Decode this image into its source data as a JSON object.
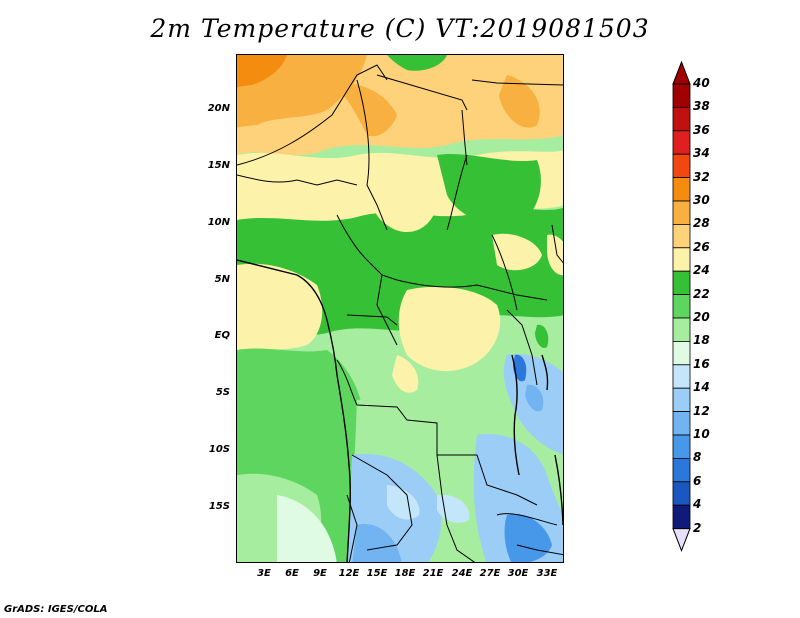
{
  "title": "2m Temperature (C) VT:2019081503",
  "footer": "GrADS: IGES/COLA",
  "latitude_labels": [
    "20N",
    "15N",
    "10N",
    "5N",
    "EQ",
    "5S",
    "10S",
    "15S"
  ],
  "longitude_labels": [
    "3E",
    "6E",
    "9E",
    "12E",
    "15E",
    "18E",
    "21E",
    "24E",
    "27E",
    "30E",
    "33E"
  ],
  "colorbar": {
    "levels": [
      "40",
      "38",
      "36",
      "34",
      "32",
      "30",
      "28",
      "26",
      "24",
      "22",
      "20",
      "18",
      "16",
      "14",
      "12",
      "10",
      "8",
      "6",
      "4",
      "2"
    ],
    "colors": [
      "#a00000",
      "#c01010",
      "#e02020",
      "#f04810",
      "#f48c10",
      "#f8b040",
      "#fdd27a",
      "#fdf2aa",
      "#36c036",
      "#5ed55e",
      "#a6eda0",
      "#e0fbe4",
      "#c4e6fb",
      "#9ccdf6",
      "#72b4f2",
      "#4898ea",
      "#2a78dc",
      "#1a58c0",
      "#101a78"
    ],
    "top_arrow_color": "#a00000",
    "bottom_arrow_color": "#e6e0fa"
  }
}
